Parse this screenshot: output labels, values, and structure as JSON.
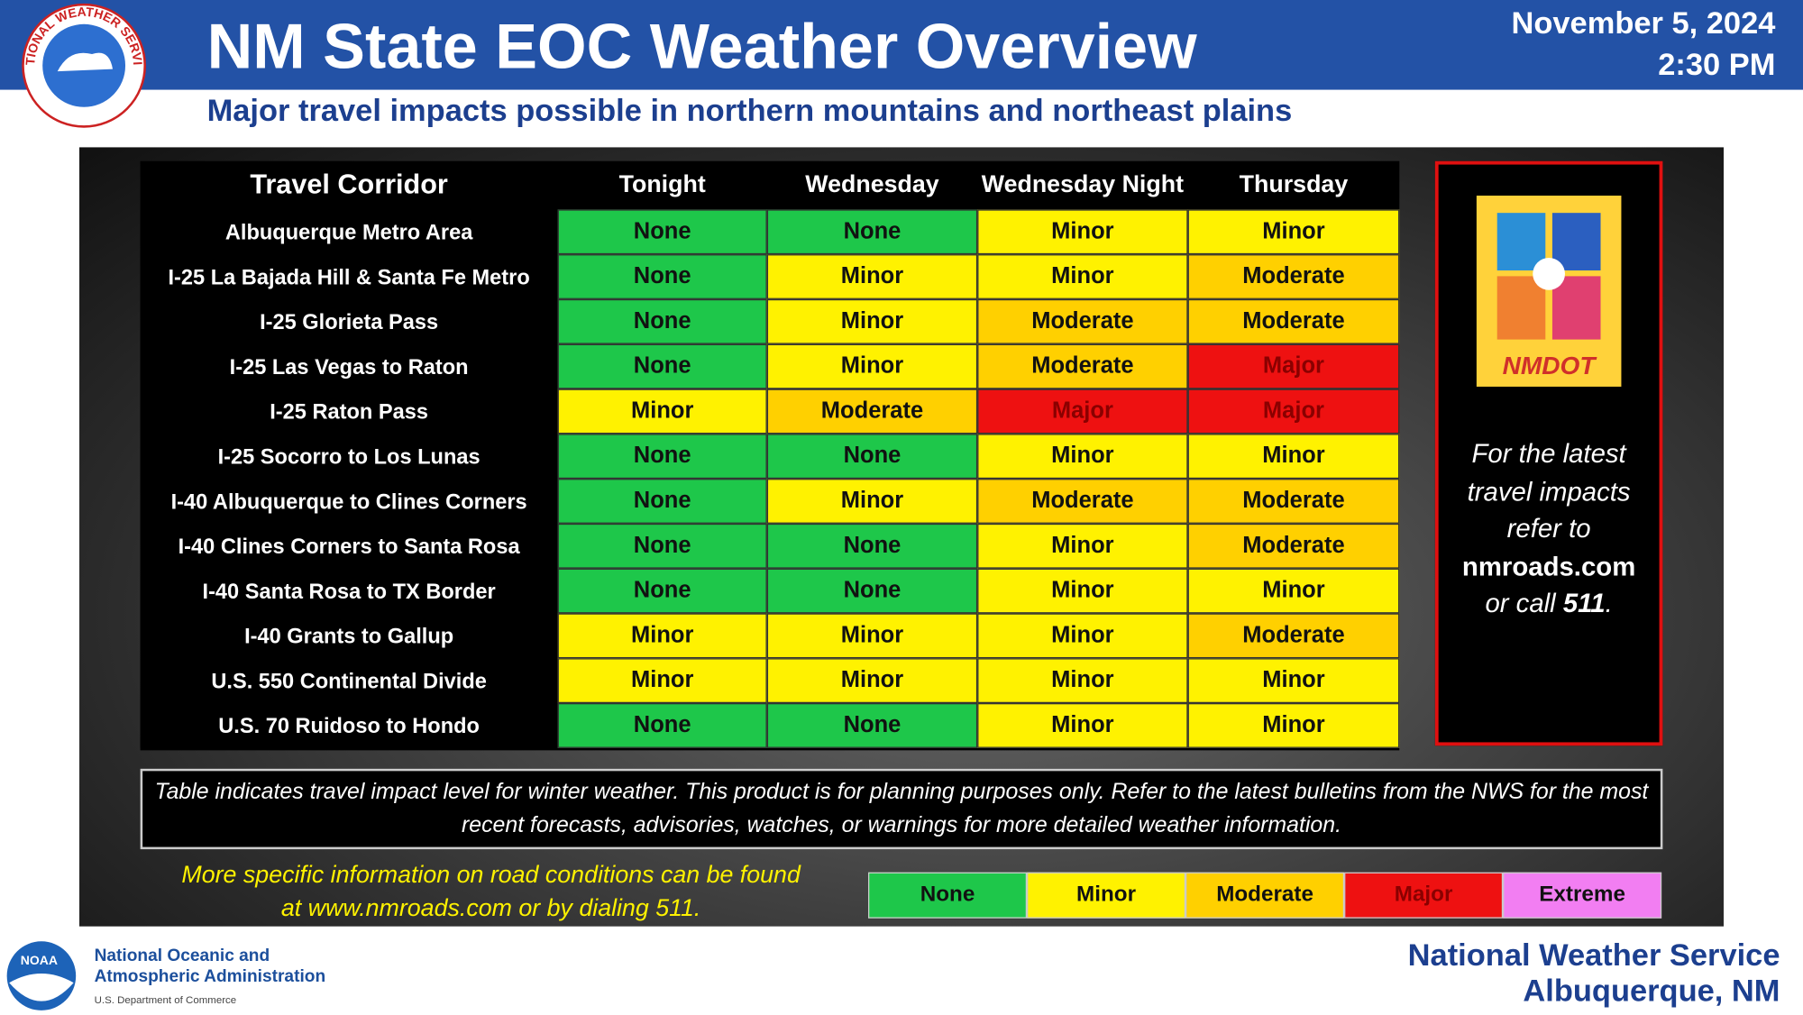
{
  "header": {
    "title": "NM State EOC Weather Overview",
    "subtitle": "Major travel impacts possible in northern mountains and northeast plains",
    "date": "November 5, 2024",
    "time": "2:30 PM",
    "logo_text": "NATIONAL WEATHER SERVICE"
  },
  "table": {
    "columns": [
      "Travel Corridor",
      "Tonight",
      "Wednesday",
      "Wednesday Night",
      "Thursday"
    ],
    "rows": [
      [
        "Albuquerque Metro Area",
        "None",
        "None",
        "Minor",
        "Minor"
      ],
      [
        "I-25 La Bajada Hill & Santa Fe Metro",
        "None",
        "Minor",
        "Minor",
        "Moderate"
      ],
      [
        "I-25 Glorieta Pass",
        "None",
        "Minor",
        "Moderate",
        "Moderate"
      ],
      [
        "I-25 Las Vegas to Raton",
        "None",
        "Minor",
        "Moderate",
        "Major"
      ],
      [
        "I-25 Raton Pass",
        "Minor",
        "Moderate",
        "Major",
        "Major"
      ],
      [
        "I-25 Socorro to Los Lunas",
        "None",
        "None",
        "Minor",
        "Minor"
      ],
      [
        "I-40 Albuquerque to Clines Corners",
        "None",
        "Minor",
        "Moderate",
        "Moderate"
      ],
      [
        "I-40 Clines Corners to Santa Rosa",
        "None",
        "None",
        "Minor",
        "Moderate"
      ],
      [
        "I-40 Santa Rosa to TX Border",
        "None",
        "None",
        "Minor",
        "Minor"
      ],
      [
        "I-40 Grants to Gallup",
        "Minor",
        "Minor",
        "Minor",
        "Moderate"
      ],
      [
        "U.S. 550 Continental Divide",
        "Minor",
        "Minor",
        "Minor",
        "Minor"
      ],
      [
        "U.S. 70 Ruidoso to Hondo",
        "None",
        "None",
        "Minor",
        "Minor"
      ]
    ]
  },
  "sidebar": {
    "logo_text": "NMDOT",
    "lines": [
      "For the latest",
      "travel impacts",
      "refer to"
    ],
    "link": "nmroads.com",
    "call": "or call",
    "number": "511",
    "end": "."
  },
  "disclaimer": "Table indicates travel impact level for winter weather.  This product is for planning purposes only.  Refer to the latest bulletins from the NWS for the most recent forecasts, advisories, watches, or warnings for more detailed weather information.",
  "more_info": [
    "More specific information on road conditions can be found",
    "at www.nmroads.com  or by dialing 511."
  ],
  "legend": [
    {
      "name": "None",
      "color": "#1ec74a",
      "text_color": "#111"
    },
    {
      "name": "Minor",
      "color": "#fff200",
      "text_color": "#111"
    },
    {
      "name": "Moderate",
      "color": "#ffd000",
      "text_color": "#111"
    },
    {
      "name": "Major",
      "color": "#ee1111",
      "text_color": "#8a0000"
    },
    {
      "name": "Extreme",
      "color": "#f27ef2",
      "text_color": "#111"
    }
  ],
  "footer": {
    "noaa_logo": "NOAA",
    "noaa_name": [
      "National Oceanic and",
      "Atmospheric Administration"
    ],
    "department": "U.S. Department of Commerce",
    "office": [
      "National Weather Service",
      "Albuquerque, NM"
    ]
  }
}
